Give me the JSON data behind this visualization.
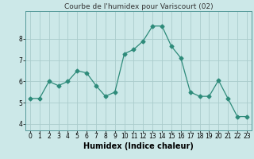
{
  "x": [
    0,
    1,
    2,
    3,
    4,
    5,
    6,
    7,
    8,
    9,
    10,
    11,
    12,
    13,
    14,
    15,
    16,
    17,
    18,
    19,
    20,
    21,
    22,
    23
  ],
  "y": [
    5.2,
    5.2,
    6.0,
    5.8,
    6.0,
    6.5,
    6.4,
    5.8,
    5.3,
    5.5,
    7.3,
    7.5,
    7.9,
    8.6,
    8.6,
    7.65,
    7.1,
    5.5,
    5.3,
    5.3,
    6.05,
    5.2,
    4.35,
    4.35
  ],
  "title": "Courbe de l'humidex pour Variscourt (02)",
  "xlabel": "Humidex (Indice chaleur)",
  "ylabel": "",
  "xlim": [
    -0.5,
    23.5
  ],
  "ylim": [
    3.7,
    9.3
  ],
  "yticks": [
    4,
    5,
    6,
    7,
    8
  ],
  "xticks": [
    0,
    1,
    2,
    3,
    4,
    5,
    6,
    7,
    8,
    9,
    10,
    11,
    12,
    13,
    14,
    15,
    16,
    17,
    18,
    19,
    20,
    21,
    22,
    23
  ],
  "line_color": "#2e8b7a",
  "marker": "D",
  "marker_size": 2.5,
  "bg_color": "#cce8e8",
  "grid_color": "#aacccc",
  "title_fontsize": 6.5,
  "label_fontsize": 7,
  "tick_fontsize": 5.5
}
